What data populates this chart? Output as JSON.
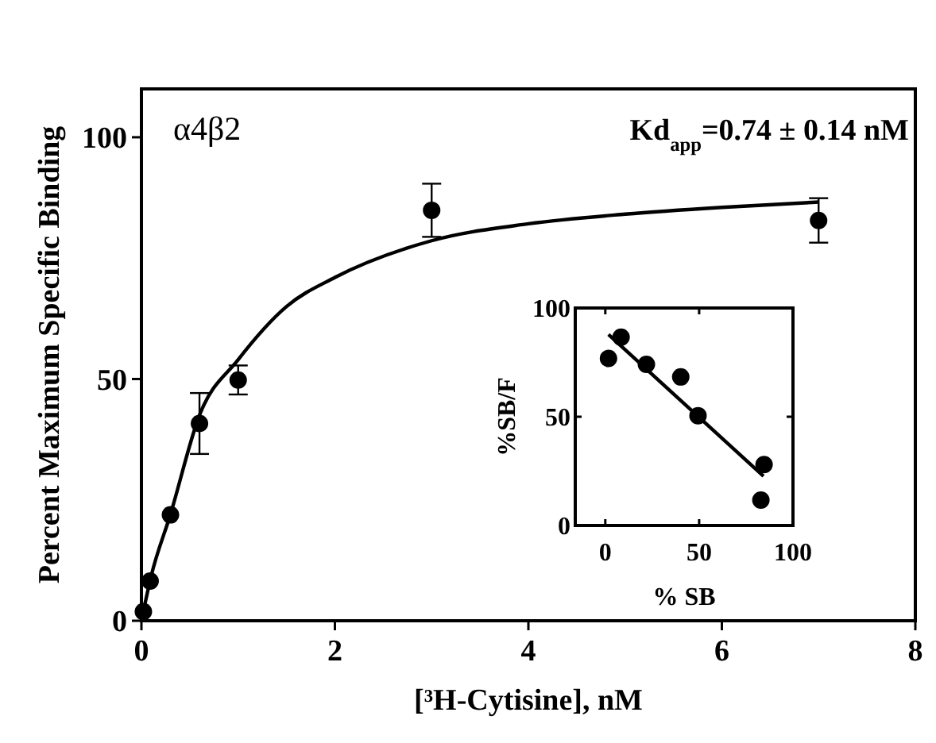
{
  "chart_data": [
    {
      "type": "scatter",
      "xlabel": "[³H-Cytisine], nM",
      "ylabel": "Percent Maximum Specific Binding",
      "xlim": [
        0,
        8
      ],
      "ylim": [
        0,
        110
      ],
      "xticks": [
        0,
        2,
        4,
        6,
        8
      ],
      "yticks": [
        0,
        50,
        100
      ],
      "grid": false,
      "annotations": [
        "α4β2",
        "Kd$_{app}$=0.74 ± 0.14 nM"
      ],
      "series": [
        {
          "marker": "circle",
          "color": "#000000",
          "x": [
            0.02,
            0.09,
            0.3,
            0.6,
            1.0,
            3.0,
            7.0
          ],
          "values": [
            1.9,
            8.2,
            21.9,
            40.8,
            49.8,
            84.9,
            82.8
          ],
          "errors": [
            null,
            null,
            null,
            6.3,
            3,
            5.5,
            4.6
          ]
        },
        {
          "type": "line",
          "marker": "none",
          "line_style": "solid",
          "color": "#000000",
          "x": [
            0,
            0.1,
            0.3,
            0.6,
            1.0,
            1.5,
            2,
            3,
            4,
            5,
            6,
            7
          ],
          "values": [
            0,
            9.2,
            22,
            42.5,
            54,
            65,
            71,
            78.6,
            82.1,
            84.1,
            85.5,
            86.6
          ]
        }
      ]
    },
    {
      "type": "scatter",
      "xlabel": "% SB",
      "ylabel": "%SB/F",
      "xlim": [
        -16,
        100
      ],
      "ylim": [
        0,
        100
      ],
      "xticks": [
        0,
        50,
        100
      ],
      "yticks": [
        0,
        50,
        100
      ],
      "grid": false,
      "series": [
        {
          "marker": "circle",
          "color": "#000000",
          "x": [
            1.7,
            8.4,
            21.9,
            40.2,
            49.4,
            82.9,
            84.6
          ],
          "values": [
            76.8,
            86.6,
            74.1,
            68.3,
            50.5,
            11.7,
            28.0
          ]
        },
        {
          "type": "line",
          "marker": "none",
          "line_style": "solid",
          "color": "#000000",
          "x": [
            1.7,
            84.3
          ],
          "values": [
            87.8,
            22.7
          ]
        }
      ]
    }
  ]
}
